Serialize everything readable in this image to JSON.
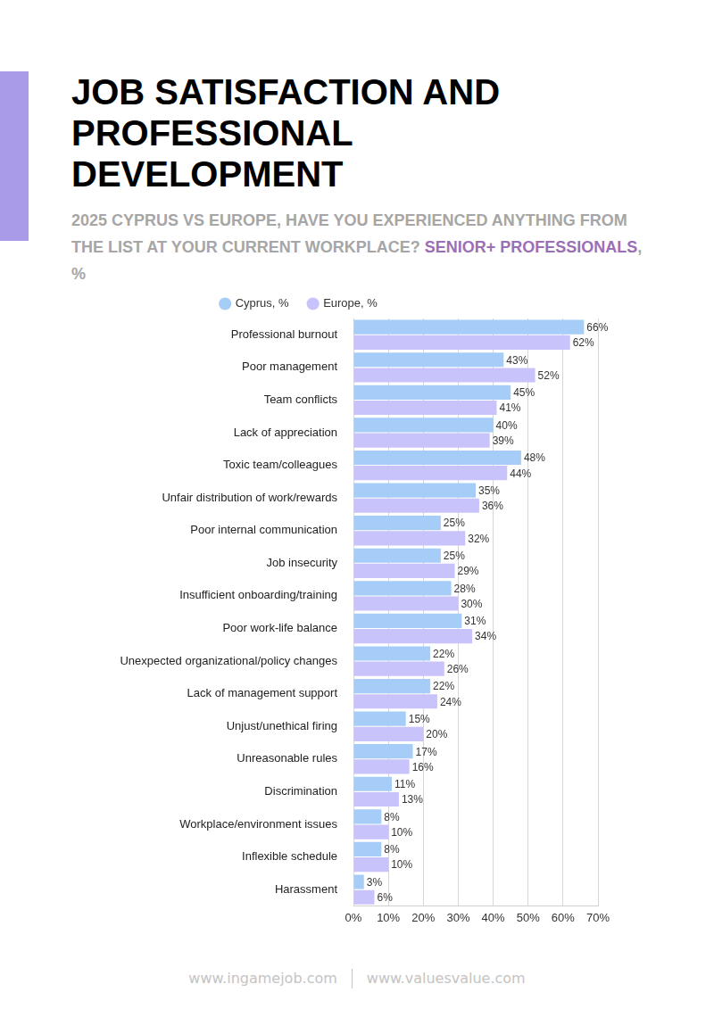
{
  "chart_data": {
    "type": "bar",
    "orientation": "horizontal",
    "title": "JOB SATISFACTION AND PROFESSIONAL DEVELOPMENT",
    "subtitle": "2025 CYPRUS VS EUROPE, HAVE YOU EXPERIENCED ANYTHING FROM THE LIST AT YOUR CURRENT WORKPLACE?",
    "subtitle_highlight": "SENIOR+ PROFESSIONALS",
    "subtitle_end": ", %",
    "footer": [
      "www.ingamejob.com",
      "www.valuesvalue.com"
    ],
    "categories": [
      "Professional burnout",
      "Poor management",
      "Team conflicts",
      "Lack of appreciation",
      "Toxic team/colleagues",
      "Unfair distribution of work/rewards",
      "Poor internal communication",
      "Job insecurity",
      "Insufficient onboarding/training",
      "Poor work-life balance",
      "Unexpected organizational/policy changes",
      "Lack of management support",
      "Unjust/unethical firing",
      "Unreasonable rules",
      "Discrimination",
      "Workplace/environment issues",
      "Inflexible schedule",
      "Harassment"
    ],
    "series": [
      {
        "name": "Cyprus, %",
        "color": "#a5cdf8",
        "values": [
          66,
          43,
          45,
          40,
          48,
          35,
          25,
          25,
          28,
          31,
          22,
          22,
          15,
          17,
          11,
          8,
          8,
          3
        ],
        "value_labels": [
          "66%",
          "43%",
          "45%",
          "40%",
          "48%",
          "35%",
          "25%",
          "25%",
          "28%",
          "31%",
          "22%",
          "22%",
          "15%",
          "17%",
          "11%",
          "8%",
          "8%",
          "3%"
        ]
      },
      {
        "name": "Europe, %",
        "color": "#c9c3fb",
        "values": [
          62,
          52,
          41,
          39,
          44,
          36,
          32,
          29,
          30,
          34,
          26,
          24,
          20,
          16,
          13,
          10,
          10,
          6
        ],
        "value_labels": [
          "62%",
          "52%",
          "41%",
          "39%",
          "44%",
          "36%",
          "32%",
          "29%",
          "30%",
          "34%",
          "26%",
          "24%",
          "20%",
          "16%",
          "13%",
          "10%",
          "10%",
          "6%"
        ]
      }
    ],
    "xlim": [
      0,
      70
    ],
    "xticks": [
      {
        "value": 0,
        "label": "0%"
      },
      {
        "value": 10,
        "label": "10%"
      },
      {
        "value": 20,
        "label": "20%"
      },
      {
        "value": 30,
        "label": "30%"
      },
      {
        "value": 40,
        "label": "40%"
      },
      {
        "value": 50,
        "label": "50%"
      },
      {
        "value": 60,
        "label": "60%"
      },
      {
        "value": 70,
        "label": "70%"
      }
    ],
    "grid": true,
    "legend": "top",
    "data_labels": true
  }
}
